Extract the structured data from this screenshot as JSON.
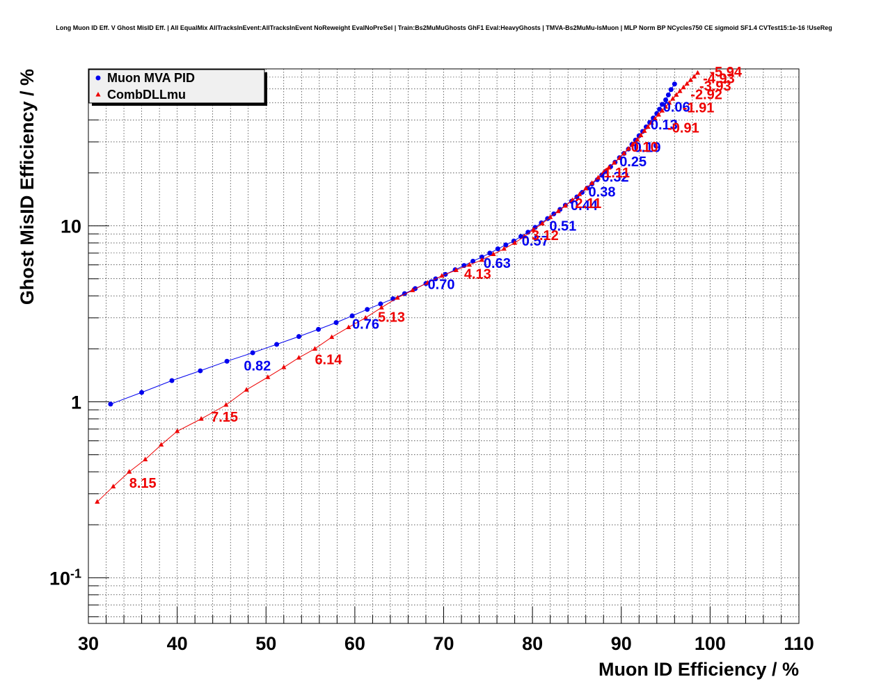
{
  "chart_data": {
    "type": "scatter",
    "title": "Long Muon ID Eff. V Ghost MisID Eff. | All EqualMix AllTracksInEvent:AllTracksInEvent NoReweight EvalNoPreSel | Train:Bs2MuMuGhosts GhF1 Eval:HeavyGhosts | TMVA-Bs2MuMu-IsMuon | MLP Norm BP NCycles750 CE sigmoid SF1.4 CVTest15:1e-16 !UseReg",
    "xlabel": "Muon ID Efficiency / %",
    "ylabel": "Ghost MisID Efficiency / %",
    "xlim": [
      30,
      110
    ],
    "ylim": [
      0.055,
      78
    ],
    "y_scale": "log",
    "grid": true,
    "x_ticks": [
      "30",
      "40",
      "50",
      "60",
      "70",
      "80",
      "90",
      "100",
      "110"
    ],
    "y_ticks": [
      {
        "base": "10",
        "exp": "-1"
      },
      {
        "base": "1",
        "exp": ""
      },
      {
        "base": "10",
        "exp": ""
      }
    ],
    "legend": {
      "placement": "top-left",
      "entries": [
        {
          "name": "Muon MVA PID",
          "marker": "circle",
          "color": "#0000ee"
        },
        {
          "name": "CombDLLmu",
          "marker": "triangle",
          "color": "#ee0000"
        }
      ]
    },
    "series": [
      {
        "name": "Muon MVA PID",
        "color": "#0000ee",
        "marker": "circle",
        "x": [
          32.5,
          36.0,
          39.4,
          42.6,
          45.6,
          48.5,
          51.2,
          53.7,
          55.9,
          57.9,
          59.7,
          61.4,
          62.9,
          64.3,
          65.6,
          66.8,
          68.0,
          69.1,
          70.2,
          71.3,
          72.3,
          73.3,
          74.3,
          75.2,
          76.1,
          77.0,
          77.9,
          78.7,
          79.5,
          80.3,
          81.0,
          81.7,
          82.4,
          83.1,
          83.7,
          84.4,
          85.0,
          85.6,
          86.2,
          86.7,
          87.3,
          87.8,
          88.3,
          88.8,
          89.3,
          89.8,
          90.3,
          90.8,
          91.2,
          91.6,
          92.0,
          92.4,
          92.8,
          93.2,
          93.6,
          94.0,
          94.3,
          94.6,
          95.0,
          95.3,
          95.6,
          96.0
        ],
        "y": [
          0.97,
          1.13,
          1.32,
          1.5,
          1.7,
          1.9,
          2.12,
          2.35,
          2.58,
          2.82,
          3.08,
          3.35,
          3.6,
          3.85,
          4.12,
          4.4,
          4.7,
          5.0,
          5.3,
          5.63,
          5.95,
          6.3,
          6.65,
          7.0,
          7.4,
          7.8,
          8.2,
          8.7,
          9.2,
          9.8,
          10.4,
          11.0,
          11.7,
          12.4,
          13.1,
          13.8,
          14.6,
          15.5,
          16.4,
          17.3,
          18.3,
          19.4,
          20.5,
          21.7,
          23.0,
          24.4,
          25.8,
          27.3,
          29.0,
          30.7,
          32.5,
          34.4,
          36.5,
          38.7,
          41.0,
          43.5,
          46.0,
          49.0,
          52.0,
          55.5,
          59.5,
          64.0
        ]
      },
      {
        "name": "CombDLLmu",
        "color": "#ee0000",
        "marker": "triangle",
        "x": [
          31.0,
          32.8,
          34.6,
          36.4,
          38.2,
          40.0,
          42.7,
          45.5,
          47.8,
          50.2,
          52.0,
          53.7,
          55.5,
          57.4,
          59.3,
          61.2,
          63.0,
          64.8,
          66.5,
          68.2,
          69.8,
          71.4,
          72.9,
          74.3,
          75.6,
          76.8,
          78.0,
          79.1,
          80.1,
          81.1,
          82.0,
          82.9,
          83.7,
          84.5,
          85.3,
          86.0,
          86.7,
          87.4,
          88.0,
          88.6,
          89.2,
          89.8,
          90.3,
          90.8,
          91.3,
          91.8,
          92.2,
          92.6,
          93.0,
          93.4,
          93.8,
          94.2,
          94.6,
          95.0,
          95.4,
          95.8,
          96.2,
          96.6,
          97.0,
          97.4,
          97.8,
          98.2,
          98.6
        ],
        "y": [
          0.27,
          0.33,
          0.4,
          0.47,
          0.57,
          0.68,
          0.8,
          0.96,
          1.17,
          1.38,
          1.57,
          1.78,
          2.0,
          2.33,
          2.65,
          3.0,
          3.43,
          3.9,
          4.3,
          4.75,
          5.2,
          5.6,
          6.0,
          6.4,
          6.9,
          7.4,
          8.0,
          8.7,
          9.5,
          10.3,
          11.2,
          12.1,
          13.0,
          14.0,
          15.1,
          16.3,
          17.5,
          18.8,
          20.1,
          21.4,
          22.8,
          24.3,
          25.8,
          27.4,
          29.1,
          30.9,
          32.7,
          34.6,
          36.5,
          38.5,
          40.6,
          42.8,
          45.1,
          47.5,
          50.0,
          52.7,
          55.5,
          58.3,
          61.2,
          64.2,
          67.3,
          70.5,
          74.0
        ]
      }
    ],
    "annotations": [
      {
        "series": "Muon MVA PID",
        "text": "0.82",
        "x": 47.5,
        "y": 1.62
      },
      {
        "series": "Muon MVA PID",
        "text": "0.76",
        "x": 59.7,
        "y": 2.8
      },
      {
        "series": "Muon MVA PID",
        "text": "0.70",
        "x": 68.2,
        "y": 4.7
      },
      {
        "series": "Muon MVA PID",
        "text": "0.63",
        "x": 74.5,
        "y": 6.2
      },
      {
        "series": "Muon MVA PID",
        "text": "0.57",
        "x": 78.8,
        "y": 8.3
      },
      {
        "series": "Muon MVA PID",
        "text": "0.51",
        "x": 81.9,
        "y": 10.1
      },
      {
        "series": "Muon MVA PID",
        "text": "0.44",
        "x": 84.3,
        "y": 13.2
      },
      {
        "series": "Muon MVA PID",
        "text": "0.38",
        "x": 86.3,
        "y": 15.8
      },
      {
        "series": "Muon MVA PID",
        "text": "0.32",
        "x": 87.8,
        "y": 19.2
      },
      {
        "series": "Muon MVA PID",
        "text": "0.25",
        "x": 89.8,
        "y": 23.4
      },
      {
        "series": "Muon MVA PID",
        "text": "0.19",
        "x": 91.4,
        "y": 28.2
      },
      {
        "series": "Muon MVA PID",
        "text": "0.13",
        "x": 93.3,
        "y": 38.0
      },
      {
        "series": "Muon MVA PID",
        "text": "0.06",
        "x": 94.7,
        "y": 48.0
      },
      {
        "series": "CombDLLmu",
        "text": "8.15",
        "x": 34.6,
        "y": 0.35
      },
      {
        "series": "CombDLLmu",
        "text": "7.15",
        "x": 43.8,
        "y": 0.83
      },
      {
        "series": "CombDLLmu",
        "text": "6.14",
        "x": 55.5,
        "y": 1.76
      },
      {
        "series": "CombDLLmu",
        "text": "5.13",
        "x": 62.6,
        "y": 3.07
      },
      {
        "series": "CombDLLmu",
        "text": "4.13",
        "x": 72.3,
        "y": 5.4
      },
      {
        "series": "CombDLLmu",
        "text": "3.12",
        "x": 79.9,
        "y": 8.95
      },
      {
        "series": "CombDLLmu",
        "text": "2.11",
        "x": 84.8,
        "y": 13.6
      },
      {
        "series": "CombDLLmu",
        "text": "1.11",
        "x": 88.0,
        "y": 20.3
      },
      {
        "series": "CombDLLmu",
        "text": "0.10",
        "x": 91.1,
        "y": 28.4
      },
      {
        "series": "CombDLLmu",
        "text": "-0.91",
        "x": 95.2,
        "y": 36.4
      },
      {
        "series": "CombDLLmu",
        "text": "-1.91",
        "x": 96.9,
        "y": 47.5
      },
      {
        "series": "CombDLLmu",
        "text": "-2.92",
        "x": 97.8,
        "y": 56.5
      },
      {
        "series": "CombDLLmu",
        "text": "-3.93",
        "x": 98.8,
        "y": 63.0
      },
      {
        "series": "CombDLLmu",
        "text": "-4.93",
        "x": 99.2,
        "y": 69.5
      },
      {
        "series": "CombDLLmu",
        "text": "-5.94",
        "x": 100.0,
        "y": 76.0
      }
    ]
  }
}
